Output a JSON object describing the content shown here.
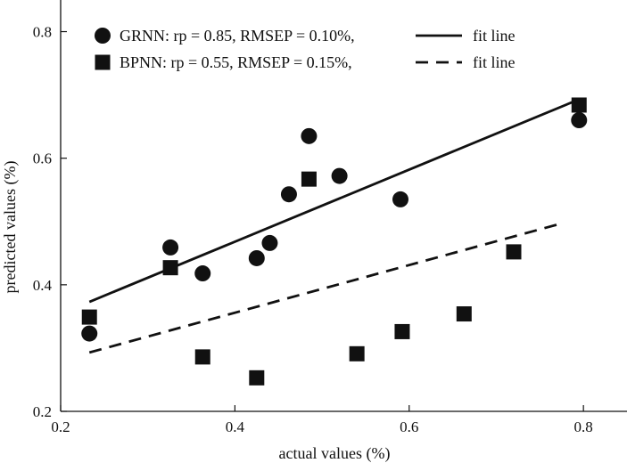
{
  "chart_data": {
    "type": "scatter",
    "xlabel": "actual values (%)",
    "ylabel": "predicted values (%)",
    "xlim": [
      0.2,
      0.85
    ],
    "ylim": [
      0.2,
      0.85
    ],
    "xticks": [
      0.2,
      0.4,
      0.6,
      0.8
    ],
    "yticks": [
      0.2,
      0.4,
      0.6,
      0.8
    ],
    "xtick_labels": [
      "0.2",
      "0.4",
      "0.6",
      "0.8"
    ],
    "ytick_labels": [
      "0.2",
      "0.4",
      "0.6",
      "0.8"
    ],
    "grid": false,
    "legend_position": "top",
    "series": [
      {
        "name": "GRNN: rp = 0.85, RMSEP = 0.10%,",
        "marker": "circle",
        "color": "#111111",
        "x": [
          0.233,
          0.326,
          0.363,
          0.425,
          0.44,
          0.462,
          0.485,
          0.52,
          0.59,
          0.795
        ],
        "y": [
          0.323,
          0.459,
          0.418,
          0.442,
          0.466,
          0.543,
          0.635,
          0.572,
          0.535,
          0.66
        ],
        "fit_line": {
          "label": "fit line",
          "style": "solid",
          "x": [
            0.233,
            0.795
          ],
          "y": [
            0.373,
            0.693
          ]
        }
      },
      {
        "name": "BPNN: rp = 0.55, RMSEP = 0.15%,",
        "marker": "square",
        "color": "#111111",
        "x": [
          0.233,
          0.326,
          0.363,
          0.425,
          0.485,
          0.54,
          0.592,
          0.663,
          0.72,
          0.795
        ],
        "y": [
          0.349,
          0.427,
          0.286,
          0.253,
          0.567,
          0.291,
          0.326,
          0.354,
          0.452,
          0.684
        ],
        "fit_line": {
          "label": "fit line",
          "style": "dashed",
          "x": [
            0.233,
            0.775
          ],
          "y": [
            0.293,
            0.497
          ]
        }
      }
    ]
  }
}
